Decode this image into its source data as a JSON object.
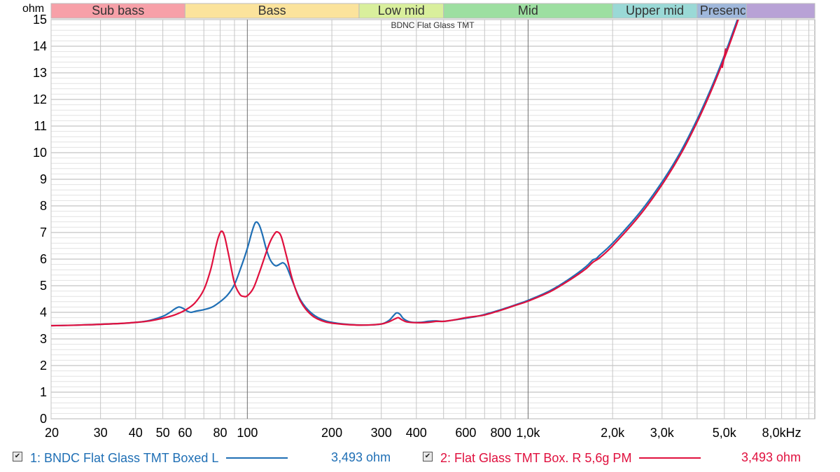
{
  "chart_data": {
    "type": "line",
    "title": "BDNC Flat Glass TMT",
    "ylabel": "ohm",
    "xunit": "kHz",
    "xscale": "log",
    "xlim": [
      20,
      10500
    ],
    "ylim": [
      0,
      15
    ],
    "grid": true,
    "y_ticks": [
      "0",
      "1",
      "2",
      "3",
      "4",
      "5",
      "6",
      "7",
      "8",
      "9",
      "10",
      "11",
      "12",
      "13",
      "14",
      "15"
    ],
    "x_ticks": [
      {
        "value": 20,
        "label": "20"
      },
      {
        "value": 30,
        "label": "30"
      },
      {
        "value": 40,
        "label": "40"
      },
      {
        "value": 50,
        "label": "50"
      },
      {
        "value": 60,
        "label": "60"
      },
      {
        "value": 80,
        "label": "80"
      },
      {
        "value": 100,
        "label": "100"
      },
      {
        "value": 200,
        "label": "200"
      },
      {
        "value": 300,
        "label": "300"
      },
      {
        "value": 400,
        "label": "400"
      },
      {
        "value": 600,
        "label": "600"
      },
      {
        "value": 800,
        "label": "800"
      },
      {
        "value": 1000,
        "label": "1,0k"
      },
      {
        "value": 2000,
        "label": "2,0k"
      },
      {
        "value": 3000,
        "label": "3,0k"
      },
      {
        "value": 5000,
        "label": "5,0k"
      },
      {
        "value": 8000,
        "label": "8,0kHz"
      }
    ],
    "bands": [
      {
        "label": "Sub bass",
        "from": 20,
        "to": 60,
        "color": "#f7a0a8"
      },
      {
        "label": "Bass",
        "from": 60,
        "to": 250,
        "color": "#fbe39c"
      },
      {
        "label": "Low mid",
        "from": 250,
        "to": 500,
        "color": "#d9ef9c"
      },
      {
        "label": "Mid",
        "from": 500,
        "to": 2000,
        "color": "#9ddfa1"
      },
      {
        "label": "Upper mid",
        "from": 2000,
        "to": 4000,
        "color": "#9ad9d6"
      },
      {
        "label": "Presence",
        "from": 4000,
        "to": 6000,
        "color": "#9fb7db"
      },
      {
        "label": "",
        "from": 6000,
        "to": 10500,
        "color": "#b8a2d6"
      }
    ],
    "series": [
      {
        "name": "1: BNDC Flat Glass TMT Boxed L",
        "color": "#1f6fb5",
        "readout": "3,493 ohm",
        "points": [
          [
            20,
            3.5
          ],
          [
            25,
            3.52
          ],
          [
            30,
            3.55
          ],
          [
            35,
            3.58
          ],
          [
            40,
            3.62
          ],
          [
            45,
            3.7
          ],
          [
            50,
            3.85
          ],
          [
            53,
            4.0
          ],
          [
            55,
            4.12
          ],
          [
            57,
            4.2
          ],
          [
            59,
            4.15
          ],
          [
            61,
            4.05
          ],
          [
            63,
            4.0
          ],
          [
            66,
            4.05
          ],
          [
            70,
            4.1
          ],
          [
            75,
            4.2
          ],
          [
            80,
            4.4
          ],
          [
            85,
            4.65
          ],
          [
            90,
            5.05
          ],
          [
            95,
            5.7
          ],
          [
            100,
            6.4
          ],
          [
            104,
            7.05
          ],
          [
            107,
            7.38
          ],
          [
            110,
            7.3
          ],
          [
            113,
            6.95
          ],
          [
            117,
            6.35
          ],
          [
            121,
            5.95
          ],
          [
            126,
            5.75
          ],
          [
            131,
            5.82
          ],
          [
            134,
            5.86
          ],
          [
            138,
            5.72
          ],
          [
            145,
            5.15
          ],
          [
            155,
            4.45
          ],
          [
            170,
            3.95
          ],
          [
            190,
            3.68
          ],
          [
            220,
            3.56
          ],
          [
            260,
            3.52
          ],
          [
            300,
            3.56
          ],
          [
            320,
            3.7
          ],
          [
            330,
            3.85
          ],
          [
            340,
            3.98
          ],
          [
            350,
            3.92
          ],
          [
            360,
            3.76
          ],
          [
            380,
            3.64
          ],
          [
            410,
            3.62
          ],
          [
            440,
            3.66
          ],
          [
            470,
            3.68
          ],
          [
            500,
            3.66
          ],
          [
            550,
            3.72
          ],
          [
            600,
            3.78
          ],
          [
            650,
            3.84
          ],
          [
            700,
            3.92
          ],
          [
            800,
            4.1
          ],
          [
            900,
            4.28
          ],
          [
            1000,
            4.45
          ],
          [
            1200,
            4.82
          ],
          [
            1400,
            5.25
          ],
          [
            1600,
            5.7
          ],
          [
            1700,
            5.97
          ],
          [
            1750,
            6.02
          ],
          [
            1800,
            6.15
          ],
          [
            2000,
            6.6
          ],
          [
            2500,
            7.75
          ],
          [
            3000,
            8.9
          ],
          [
            3500,
            10.05
          ],
          [
            4000,
            11.25
          ],
          [
            4500,
            12.45
          ],
          [
            5000,
            13.65
          ],
          [
            5500,
            14.85
          ],
          [
            5700,
            15.3
          ]
        ]
      },
      {
        "name": "2: Flat Glass TMT Box. R 5,6g PM",
        "color": "#e0103e",
        "readout": "3,493 ohm",
        "points": [
          [
            20,
            3.5
          ],
          [
            25,
            3.52
          ],
          [
            30,
            3.55
          ],
          [
            35,
            3.58
          ],
          [
            40,
            3.62
          ],
          [
            45,
            3.68
          ],
          [
            50,
            3.78
          ],
          [
            55,
            3.9
          ],
          [
            60,
            4.08
          ],
          [
            65,
            4.35
          ],
          [
            70,
            4.85
          ],
          [
            74,
            5.6
          ],
          [
            77,
            6.4
          ],
          [
            79,
            6.85
          ],
          [
            81,
            7.05
          ],
          [
            83,
            6.85
          ],
          [
            86,
            6.1
          ],
          [
            90,
            5.1
          ],
          [
            94,
            4.68
          ],
          [
            97,
            4.6
          ],
          [
            100,
            4.62
          ],
          [
            105,
            4.9
          ],
          [
            110,
            5.45
          ],
          [
            115,
            6.05
          ],
          [
            120,
            6.6
          ],
          [
            125,
            6.95
          ],
          [
            128,
            7.02
          ],
          [
            132,
            6.85
          ],
          [
            138,
            6.1
          ],
          [
            145,
            5.2
          ],
          [
            155,
            4.4
          ],
          [
            170,
            3.88
          ],
          [
            190,
            3.64
          ],
          [
            220,
            3.55
          ],
          [
            260,
            3.52
          ],
          [
            300,
            3.56
          ],
          [
            320,
            3.65
          ],
          [
            335,
            3.75
          ],
          [
            345,
            3.8
          ],
          [
            355,
            3.72
          ],
          [
            370,
            3.64
          ],
          [
            400,
            3.61
          ],
          [
            440,
            3.62
          ],
          [
            470,
            3.66
          ],
          [
            500,
            3.66
          ],
          [
            550,
            3.72
          ],
          [
            600,
            3.8
          ],
          [
            650,
            3.85
          ],
          [
            700,
            3.9
          ],
          [
            800,
            4.08
          ],
          [
            900,
            4.26
          ],
          [
            1000,
            4.42
          ],
          [
            1200,
            4.78
          ],
          [
            1400,
            5.2
          ],
          [
            1600,
            5.62
          ],
          [
            1700,
            5.88
          ],
          [
            1800,
            6.05
          ],
          [
            2000,
            6.5
          ],
          [
            2500,
            7.65
          ],
          [
            3000,
            8.8
          ],
          [
            3500,
            9.95
          ],
          [
            4000,
            11.15
          ],
          [
            4500,
            12.35
          ],
          [
            5000,
            13.55
          ],
          [
            5500,
            14.75
          ],
          [
            5700,
            15.25
          ]
        ]
      }
    ]
  }
}
